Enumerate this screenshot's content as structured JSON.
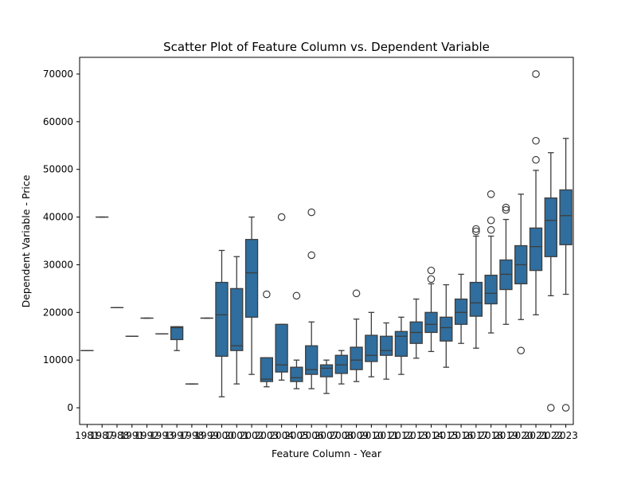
{
  "chart_data": {
    "type": "box",
    "title": "Scatter Plot of Feature Column vs. Dependent Variable",
    "xlabel": "Feature Column - Year",
    "ylabel": "Dependent Variable - Price",
    "ylim": [
      -3500,
      73500
    ],
    "yticks": [
      0,
      10000,
      20000,
      30000,
      40000,
      50000,
      60000,
      70000
    ],
    "grid": false,
    "box_color": "#2f6e9e",
    "line_color": "#3d3d3d",
    "categories": [
      "1981",
      "1987",
      "1988",
      "1991",
      "1992",
      "1993",
      "1997",
      "1998",
      "1999",
      "2000",
      "2001",
      "2002",
      "2003",
      "2004",
      "2005",
      "2006",
      "2007",
      "2008",
      "2009",
      "2010",
      "2011",
      "2012",
      "2013",
      "2014",
      "2015",
      "2016",
      "2017",
      "2018",
      "2019",
      "2020",
      "2021",
      "2022",
      "2023"
    ],
    "boxes": [
      {
        "year": "1981",
        "min": 12000,
        "q1": 12000,
        "median": 12000,
        "q3": 12000,
        "max": 12000,
        "outliers": []
      },
      {
        "year": "1987",
        "min": 40000,
        "q1": 40000,
        "median": 40000,
        "q3": 40000,
        "max": 40000,
        "outliers": []
      },
      {
        "year": "1988",
        "min": 21000,
        "q1": 21000,
        "median": 21000,
        "q3": 21000,
        "max": 21000,
        "outliers": []
      },
      {
        "year": "1991",
        "min": 15000,
        "q1": 15000,
        "median": 15000,
        "q3": 15000,
        "max": 15000,
        "outliers": []
      },
      {
        "year": "1992",
        "min": 18800,
        "q1": 18800,
        "median": 18800,
        "q3": 18800,
        "max": 18800,
        "outliers": []
      },
      {
        "year": "1993",
        "min": 15500,
        "q1": 15500,
        "median": 15500,
        "q3": 15500,
        "max": 15500,
        "outliers": []
      },
      {
        "year": "1997",
        "min": 12000,
        "q1": 14300,
        "median": 16800,
        "q3": 17000,
        "max": 17000,
        "outliers": []
      },
      {
        "year": "1998",
        "min": 5000,
        "q1": 5000,
        "median": 5000,
        "q3": 5000,
        "max": 5000,
        "outliers": []
      },
      {
        "year": "1999",
        "min": 18800,
        "q1": 18800,
        "median": 18800,
        "q3": 18800,
        "max": 18800,
        "outliers": []
      },
      {
        "year": "2000",
        "min": 2300,
        "q1": 10800,
        "median": 19500,
        "q3": 26300,
        "max": 33000,
        "outliers": []
      },
      {
        "year": "2001",
        "min": 5000,
        "q1": 12000,
        "median": 13000,
        "q3": 25000,
        "max": 31700,
        "outliers": []
      },
      {
        "year": "2002",
        "min": 7000,
        "q1": 19000,
        "median": 28300,
        "q3": 35300,
        "max": 40000,
        "outliers": []
      },
      {
        "year": "2003",
        "min": 4400,
        "q1": 5500,
        "median": 6000,
        "q3": 10500,
        "max": 10500,
        "outliers": [
          23800
        ]
      },
      {
        "year": "2004",
        "min": 5800,
        "q1": 7500,
        "median": 9000,
        "q3": 17500,
        "max": 17500,
        "outliers": [
          40000
        ]
      },
      {
        "year": "2005",
        "min": 4000,
        "q1": 5500,
        "median": 6300,
        "q3": 8500,
        "max": 10000,
        "outliers": [
          23500
        ]
      },
      {
        "year": "2006",
        "min": 4000,
        "q1": 7000,
        "median": 8000,
        "q3": 13000,
        "max": 18000,
        "outliers": [
          32000,
          41000
        ]
      },
      {
        "year": "2007",
        "min": 3000,
        "q1": 6500,
        "median": 8300,
        "q3": 9000,
        "max": 10000,
        "outliers": []
      },
      {
        "year": "2008",
        "min": 5000,
        "q1": 7200,
        "median": 9000,
        "q3": 11000,
        "max": 12000,
        "outliers": []
      },
      {
        "year": "2009",
        "min": 5500,
        "q1": 8000,
        "median": 10000,
        "q3": 12700,
        "max": 18600,
        "outliers": [
          24000
        ]
      },
      {
        "year": "2010",
        "min": 6500,
        "q1": 9700,
        "median": 11000,
        "q3": 15200,
        "max": 20000,
        "outliers": []
      },
      {
        "year": "2011",
        "min": 6000,
        "q1": 11000,
        "median": 12000,
        "q3": 15000,
        "max": 17800,
        "outliers": []
      },
      {
        "year": "2012",
        "min": 7000,
        "q1": 10800,
        "median": 15000,
        "q3": 16000,
        "max": 19000,
        "outliers": []
      },
      {
        "year": "2013",
        "min": 10400,
        "q1": 13500,
        "median": 15800,
        "q3": 18000,
        "max": 22800,
        "outliers": []
      },
      {
        "year": "2014",
        "min": 11800,
        "q1": 15800,
        "median": 17500,
        "q3": 20000,
        "max": 26000,
        "outliers": [
          27000,
          28800
        ]
      },
      {
        "year": "2015",
        "min": 8500,
        "q1": 14000,
        "median": 16800,
        "q3": 19000,
        "max": 25800,
        "outliers": []
      },
      {
        "year": "2016",
        "min": 13500,
        "q1": 17500,
        "median": 20000,
        "q3": 22800,
        "max": 28000,
        "outliers": []
      },
      {
        "year": "2017",
        "min": 12500,
        "q1": 19200,
        "median": 22000,
        "q3": 26300,
        "max": 36000,
        "outliers": [
          37000,
          37500
        ]
      },
      {
        "year": "2018",
        "min": 15700,
        "q1": 21800,
        "median": 24000,
        "q3": 27800,
        "max": 36000,
        "outliers": [
          37300,
          39300,
          44800
        ]
      },
      {
        "year": "2019",
        "min": 17500,
        "q1": 24800,
        "median": 28000,
        "q3": 31000,
        "max": 39500,
        "outliers": [
          41500,
          42000
        ]
      },
      {
        "year": "2020",
        "min": 18500,
        "q1": 26000,
        "median": 30000,
        "q3": 34000,
        "max": 44800,
        "outliers": [
          12000
        ]
      },
      {
        "year": "2021",
        "min": 19500,
        "q1": 28800,
        "median": 33800,
        "q3": 37700,
        "max": 49800,
        "outliers": [
          52000,
          56000,
          70000
        ]
      },
      {
        "year": "2022",
        "min": 23500,
        "q1": 31700,
        "median": 39300,
        "q3": 44000,
        "max": 53500,
        "outliers": [
          0
        ]
      },
      {
        "year": "2023",
        "min": 23800,
        "q1": 34200,
        "median": 40300,
        "q3": 45700,
        "max": 56500,
        "outliers": [
          0
        ]
      }
    ]
  }
}
